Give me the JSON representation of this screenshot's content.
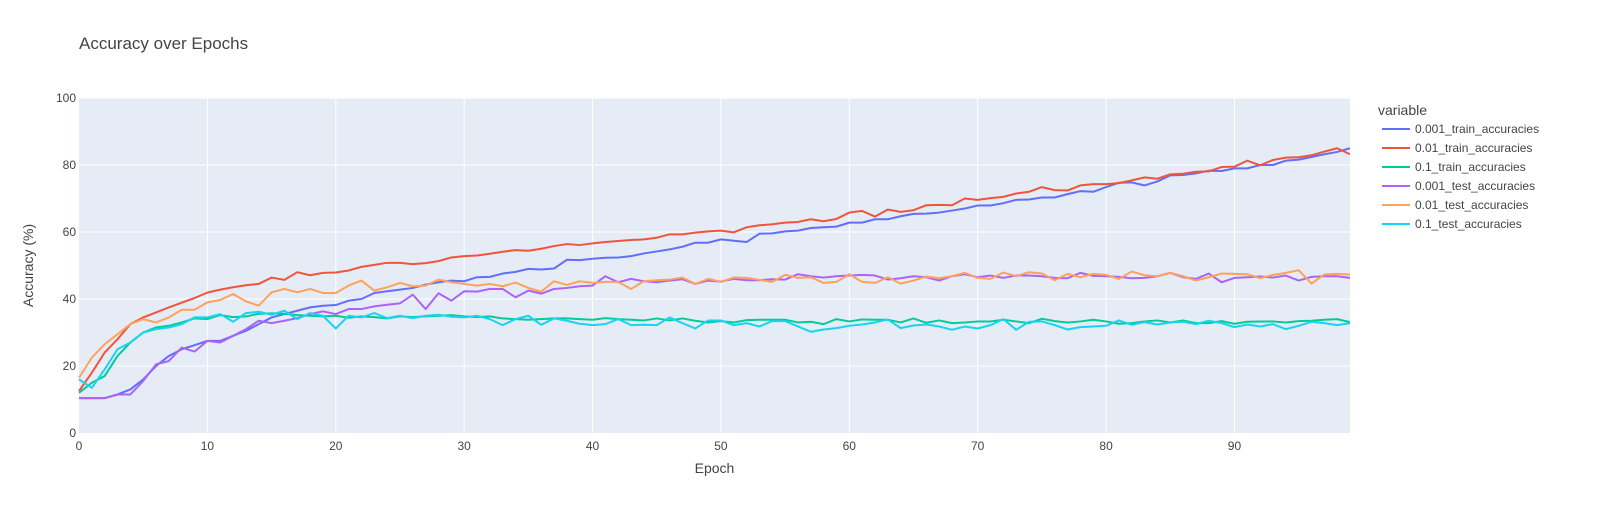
{
  "chart_data": {
    "type": "line",
    "title": "Accuracy over Epochs",
    "xlabel": "Epoch",
    "ylabel": "Accuracy (%)",
    "xlim": [
      0,
      99
    ],
    "ylim": [
      0,
      100
    ],
    "x_ticks": [
      0,
      10,
      20,
      30,
      40,
      50,
      60,
      70,
      80,
      90
    ],
    "y_ticks": [
      0,
      20,
      40,
      60,
      80,
      100
    ],
    "grid": true,
    "legend_title": "variable",
    "legend_position": "right",
    "plot_background": "#E5ECF6",
    "grid_color": "#FFFFFF",
    "series": [
      {
        "name": "0.001_train_accuracies",
        "color": "#636EFA",
        "values": [
          10.4,
          10.4,
          10.4,
          11.5,
          13.0,
          16.0,
          20.0,
          23.0,
          25.0,
          26.2,
          27.5,
          27.5,
          29.0,
          30.5,
          32.5,
          34.5,
          35.5,
          36.5,
          37.5,
          38.0,
          38.2,
          39.5,
          40.0,
          41.8,
          42.3,
          42.8,
          43.3,
          44.3,
          45.0,
          45.5,
          45.3,
          46.5,
          46.6,
          47.6,
          48.1,
          49.0,
          48.8,
          49.1,
          51.7,
          51.6,
          52.0,
          52.3,
          52.4,
          52.8,
          53.6,
          54.2,
          54.8,
          55.6,
          56.8,
          56.8,
          57.8,
          57.4,
          57.0,
          59.5,
          59.6,
          60.2,
          60.4,
          61.2,
          61.4,
          61.6,
          62.8,
          62.8,
          63.8,
          63.8,
          64.7,
          65.4,
          65.5,
          65.8,
          66.4,
          67.0,
          67.9,
          67.9,
          68.6,
          69.6,
          69.7,
          70.3,
          70.3,
          71.3,
          72.2,
          72.0,
          73.4,
          74.7,
          74.8,
          73.9,
          75.1,
          76.9,
          77.0,
          77.5,
          78.3,
          78.2,
          79.0,
          79.0,
          80.0,
          80.0,
          81.3,
          81.6,
          82.4,
          83.2,
          83.9,
          85.0
        ]
      },
      {
        "name": "0.01_train_accuracies",
        "color": "#EF553B",
        "values": [
          12.5,
          18.0,
          24.0,
          28.0,
          32.5,
          34.5,
          36.0,
          37.5,
          38.9,
          40.3,
          41.9,
          42.8,
          43.5,
          44.1,
          44.5,
          46.4,
          45.7,
          48.0,
          47.1,
          47.8,
          47.9,
          48.5,
          49.6,
          50.2,
          50.8,
          50.8,
          50.4,
          50.7,
          51.3,
          52.4,
          52.8,
          53.0,
          53.5,
          54.1,
          54.6,
          54.4,
          55.0,
          55.8,
          56.4,
          56.1,
          56.6,
          57.0,
          57.3,
          57.6,
          57.8,
          58.3,
          59.3,
          59.3,
          59.8,
          60.2,
          60.4,
          59.9,
          61.4,
          62.0,
          62.3,
          62.8,
          63.0,
          63.8,
          63.2,
          63.9,
          65.8,
          66.3,
          64.6,
          66.7,
          66.0,
          66.5,
          68.0,
          68.1,
          68.0,
          70.0,
          69.6,
          70.1,
          70.5,
          71.5,
          72.0,
          73.4,
          72.5,
          72.4,
          73.9,
          74.3,
          74.3,
          74.6,
          75.4,
          76.3,
          75.9,
          77.2,
          77.4,
          78.0,
          78.1,
          79.4,
          79.5,
          81.3,
          79.9,
          81.5,
          82.2,
          82.3,
          82.9,
          84.0,
          85.0,
          83.2
        ]
      },
      {
        "name": "0.1_train_accuracies",
        "color": "#00CC96",
        "values": [
          12.0,
          15.0,
          17.0,
          23.0,
          27.0,
          30.0,
          31.5,
          32.0,
          33.0,
          34.2,
          34.0,
          35.2,
          34.6,
          34.8,
          35.6,
          35.7,
          35.6,
          35.2,
          35.0,
          34.8,
          35.0,
          34.4,
          34.8,
          34.6,
          34.2,
          34.8,
          34.6,
          34.8,
          35.0,
          35.2,
          34.8,
          34.6,
          34.8,
          34.2,
          34.0,
          33.8,
          34.0,
          34.2,
          34.2,
          34.0,
          33.8,
          34.3,
          34.0,
          33.8,
          33.6,
          34.2,
          33.6,
          34.2,
          33.5,
          33.0,
          33.4,
          33.0,
          33.7,
          33.8,
          33.8,
          33.8,
          33.0,
          33.2,
          32.5,
          34.0,
          33.3,
          33.9,
          33.8,
          33.8,
          33.0,
          34.2,
          32.9,
          33.6,
          32.8,
          33.0,
          33.3,
          33.3,
          33.8,
          33.3,
          32.8,
          34.1,
          33.4,
          33.0,
          33.3,
          33.8,
          33.3,
          32.6,
          32.8,
          33.3,
          33.6,
          33.0,
          33.6,
          32.8,
          32.8,
          33.4,
          32.6,
          33.2,
          33.3,
          33.3,
          33.0,
          33.4,
          33.5,
          33.8,
          34.0,
          33.1
        ]
      },
      {
        "name": "0.001_test_accuracies",
        "color": "#AB63FA",
        "values": [
          10.4,
          10.4,
          10.4,
          11.5,
          11.5,
          15.5,
          20.5,
          21.5,
          25.5,
          24.3,
          27.5,
          27.0,
          29.0,
          31.0,
          33.5,
          32.8,
          33.5,
          34.3,
          35.5,
          36.3,
          35.5,
          37.0,
          37.0,
          37.8,
          38.3,
          38.7,
          41.3,
          37.0,
          41.7,
          39.5,
          42.3,
          42.2,
          43.0,
          43.0,
          40.5,
          42.5,
          41.6,
          43.0,
          43.3,
          43.8,
          44.0,
          46.8,
          45.0,
          46.0,
          45.3,
          45.0,
          45.5,
          45.9,
          44.5,
          45.5,
          45.2,
          46.0,
          45.6,
          45.6,
          45.9,
          45.8,
          47.4,
          46.8,
          46.4,
          46.8,
          47.0,
          47.2,
          47.0,
          45.8,
          46.2,
          46.8,
          46.5,
          45.5,
          46.8,
          47.4,
          46.5,
          47.0,
          46.3,
          47.0,
          47.0,
          46.8,
          46.3,
          46.2,
          47.8,
          46.9,
          46.8,
          46.6,
          46.2,
          46.3,
          46.8,
          47.8,
          46.5,
          46.0,
          47.6,
          45.0,
          46.3,
          46.5,
          46.7,
          46.4,
          47.0,
          45.5,
          46.6,
          46.8,
          46.8,
          46.3
        ]
      },
      {
        "name": "0.01_test_accuracies",
        "color": "#FFA15A",
        "values": [
          16.5,
          22.5,
          26.5,
          29.5,
          32.5,
          34.0,
          33.0,
          34.5,
          36.8,
          36.8,
          39.0,
          39.7,
          41.5,
          39.3,
          38.0,
          42.0,
          43.0,
          42.0,
          43.0,
          41.8,
          41.8,
          44.0,
          45.5,
          42.5,
          43.5,
          44.8,
          43.8,
          44.0,
          45.8,
          45.0,
          44.5,
          44.0,
          44.5,
          43.8,
          44.9,
          43.3,
          42.2,
          45.3,
          44.2,
          45.3,
          44.8,
          45.1,
          45.1,
          43.0,
          45.3,
          45.6,
          45.8,
          46.4,
          44.5,
          46.0,
          45.1,
          46.4,
          46.3,
          45.7,
          45.1,
          47.2,
          46.3,
          46.5,
          44.8,
          45.1,
          47.4,
          45.1,
          44.8,
          46.5,
          44.6,
          45.5,
          46.7,
          46.2,
          46.8,
          47.8,
          46.3,
          46.0,
          47.9,
          46.8,
          48.0,
          47.6,
          45.6,
          47.5,
          46.5,
          47.5,
          47.2,
          46.0,
          48.2,
          47.1,
          46.8,
          47.8,
          46.8,
          45.5,
          46.5,
          47.6,
          47.5,
          47.4,
          46.2,
          47.2,
          47.8,
          48.6,
          44.6,
          47.3,
          47.5,
          47.3
        ]
      },
      {
        "name": "0.1_test_accuracies",
        "color": "#19D3F3",
        "values": [
          16.0,
          13.5,
          19.0,
          25.0,
          27.0,
          30.0,
          31.0,
          31.5,
          32.5,
          34.5,
          34.5,
          35.5,
          33.2,
          35.8,
          36.2,
          35.3,
          36.5,
          34.0,
          35.8,
          35.0,
          31.2,
          35.0,
          34.5,
          35.8,
          34.3,
          35.0,
          34.3,
          35.0,
          35.3,
          34.7,
          34.5,
          35.0,
          34.0,
          32.2,
          34.0,
          35.0,
          32.3,
          34.2,
          33.5,
          32.6,
          32.2,
          32.5,
          34.0,
          32.2,
          32.3,
          32.2,
          34.5,
          32.8,
          31.2,
          33.6,
          33.6,
          32.2,
          32.8,
          31.8,
          33.4,
          33.4,
          31.8,
          30.2,
          30.9,
          31.3,
          32.0,
          32.4,
          33.0,
          33.9,
          31.3,
          32.1,
          32.4,
          31.8,
          30.8,
          31.8,
          31.2,
          32.2,
          34.0,
          30.8,
          33.2,
          33.3,
          32.2,
          30.9,
          31.6,
          31.8,
          32.0,
          33.6,
          32.3,
          33.1,
          32.4,
          33.0,
          33.2,
          32.5,
          33.5,
          32.8,
          31.6,
          32.4,
          31.8,
          32.5,
          31.0,
          32.0,
          33.2,
          32.8,
          32.2,
          32.8
        ]
      }
    ]
  }
}
